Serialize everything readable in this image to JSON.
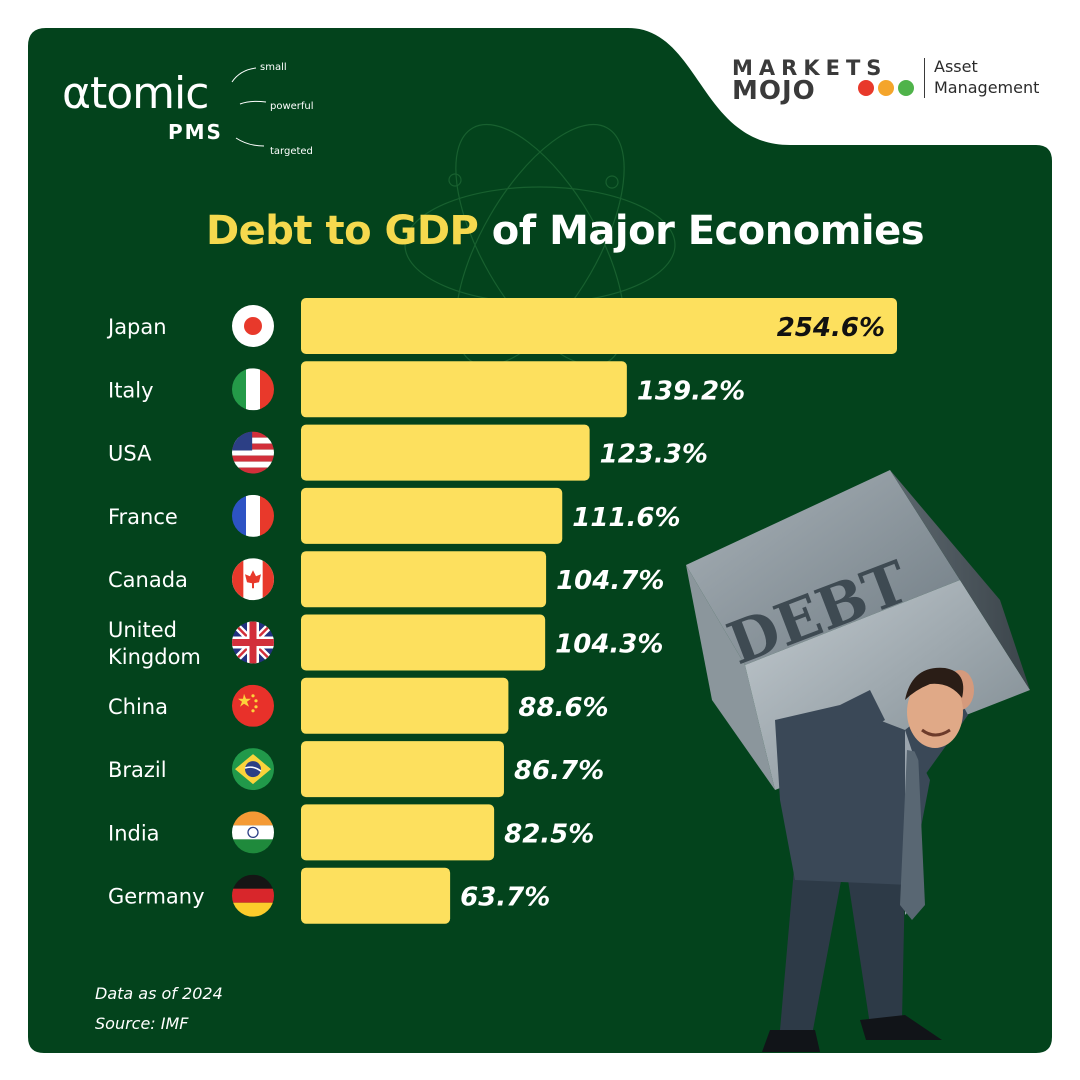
{
  "brand": {
    "atomic": "αtomic",
    "pms": "PMS",
    "taglines": [
      "small",
      "powerful",
      "targeted"
    ],
    "marketsmojo_line1": "MARKETS",
    "marketsmojo_line2": "MOJO",
    "marketsmojo_dots": [
      "#e8392b",
      "#f4a52b",
      "#4fb34a"
    ],
    "asset_line1": "Asset",
    "asset_line2": "Management"
  },
  "colors": {
    "panel": "#03431c",
    "bar": "#fde05e",
    "title_highlight": "#f5d94e"
  },
  "title_highlight": "Debt to GDP",
  "title_rest": " of Major Economies",
  "chart_data": {
    "type": "bar",
    "orientation": "horizontal",
    "title": "Debt to GDP of Major Economies",
    "categories": [
      "Japan",
      "Italy",
      "USA",
      "France",
      "Canada",
      "United Kingdom",
      "China",
      "Brazil",
      "India",
      "Germany"
    ],
    "category_lines": [
      [
        "Japan"
      ],
      [
        "Italy"
      ],
      [
        "USA"
      ],
      [
        "France"
      ],
      [
        "Canada"
      ],
      [
        "United",
        "Kingdom"
      ],
      [
        "China"
      ],
      [
        "Brazil"
      ],
      [
        "India"
      ],
      [
        "Germany"
      ]
    ],
    "flags": [
      "japan-flag-icon",
      "italy-flag-icon",
      "usa-flag-icon",
      "france-flag-icon",
      "canada-flag-icon",
      "united-kingdom-flag-icon",
      "china-flag-icon",
      "brazil-flag-icon",
      "india-flag-icon",
      "germany-flag-icon"
    ],
    "values": [
      254.6,
      139.2,
      123.3,
      111.6,
      104.7,
      104.3,
      88.6,
      86.7,
      82.5,
      63.7
    ],
    "labels": [
      "254.6%",
      "139.2%",
      "123.3%",
      "111.6%",
      "104.7%",
      "104.3%",
      "88.6%",
      "86.7%",
      "82.5%",
      "63.7%"
    ],
    "unit": "%",
    "xlim": [
      0,
      254.6
    ],
    "grid": false,
    "legend": "none"
  },
  "footnote_date": "Data as of 2024",
  "footnote_source": "Source: IMF",
  "illustration": {
    "box_text": "DEBT"
  }
}
